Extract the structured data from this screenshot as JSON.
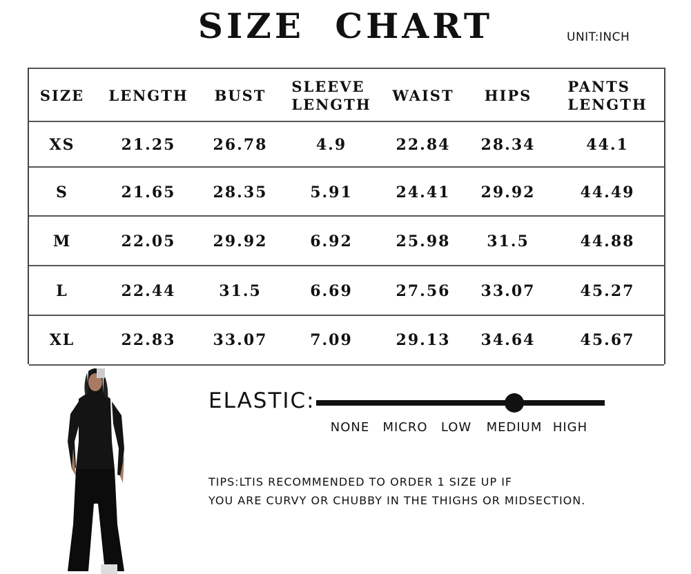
{
  "title": "SIZE CHART",
  "unit": "UNIT:INCH",
  "table": {
    "headers": [
      "SIZE",
      "LENGTH",
      "BUST",
      "SLEEVE\nLENGTH",
      "WAIST",
      "HIPS",
      "PANTS\nLENGTH"
    ],
    "rows": [
      [
        "XS",
        "21.25",
        "26.78",
        "4.9",
        "22.84",
        "28.34",
        "44.1"
      ],
      [
        "S",
        "21.65",
        "28.35",
        "5.91",
        "24.41",
        "29.92",
        "44.49"
      ],
      [
        "M",
        "22.05",
        "29.92",
        "6.92",
        "25.98",
        "31.5",
        "44.88"
      ],
      [
        "L",
        "22.44",
        "31.5",
        "6.69",
        "27.56",
        "33.07",
        "45.27"
      ],
      [
        "XL",
        "22.83",
        "33.07",
        "7.09",
        "29.13",
        "34.64",
        "45.67"
      ]
    ]
  },
  "elastic": {
    "label": "ELASTIC:",
    "levels": [
      "NONE",
      "MICRO",
      "LOW",
      "MEDIUM",
      "HIGH"
    ],
    "selected": "MEDIUM"
  },
  "tips": [
    "TIPS:LTIS RECOMMENDED TO ORDER 1 SIZE UP IF",
    "YOU ARE CURVY OR CHUBBY IN THE THIGHS OR MIDSECTION."
  ]
}
